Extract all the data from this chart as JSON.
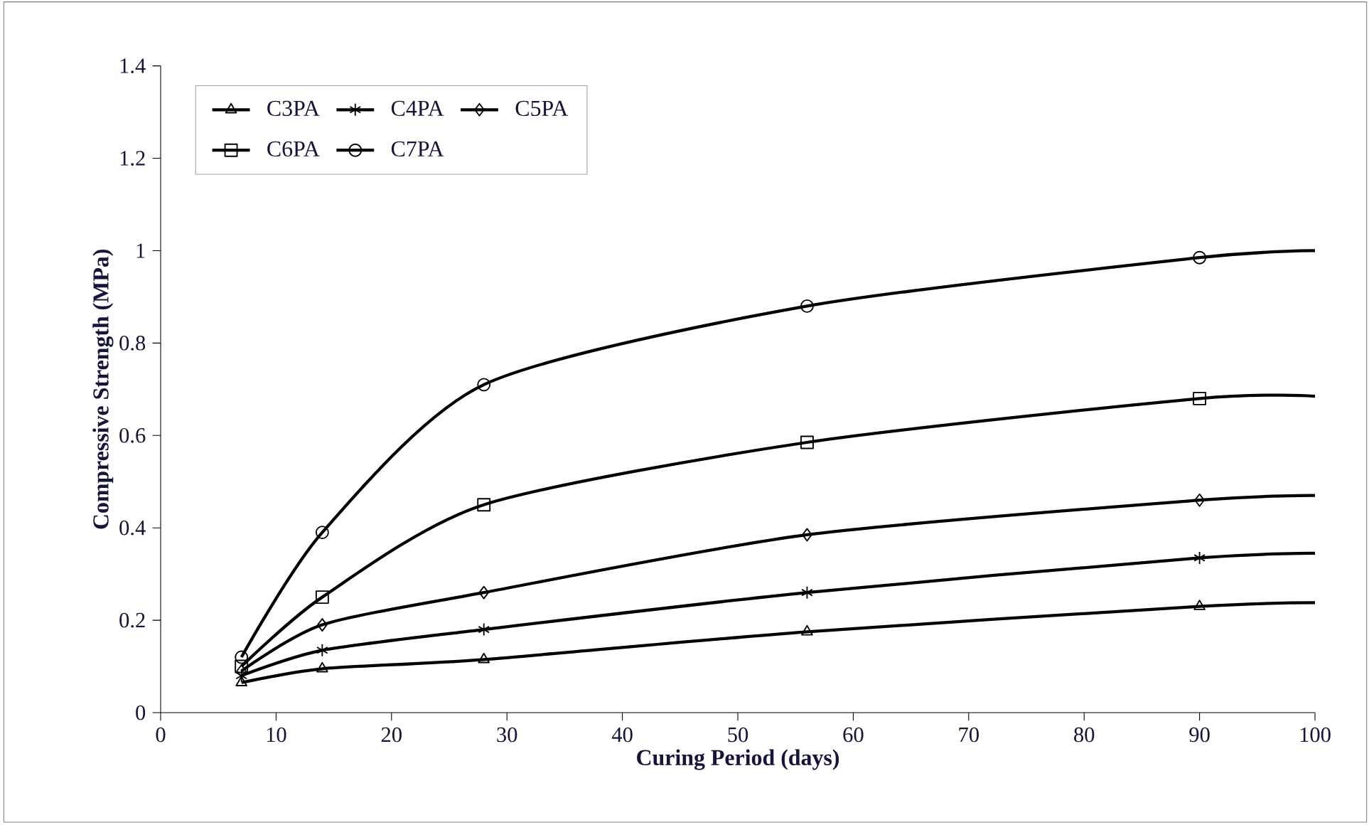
{
  "chart_data": {
    "type": "line",
    "xlabel": "Curing Period (days)",
    "ylabel": "Compressive Strength (MPa)",
    "xlim": [
      0,
      100
    ],
    "xticks": [
      0,
      10,
      20,
      30,
      40,
      50,
      60,
      70,
      80,
      90,
      100
    ],
    "ylim": [
      0,
      1.4
    ],
    "yticks": [
      0,
      0.2,
      0.4,
      0.6,
      0.8,
      1,
      1.2,
      1.4
    ],
    "grid": false,
    "legend": "top left",
    "line_style": "solid",
    "series": [
      {
        "name": "C3PA",
        "color": "#000000",
        "marker": "triangle",
        "x": [
          7,
          14,
          28,
          56,
          90,
          100
        ],
        "values": [
          0.065,
          0.095,
          0.115,
          0.175,
          0.23,
          0.238
        ]
      },
      {
        "name": "C4PA",
        "color": "#000000",
        "marker": "cross",
        "x": [
          7,
          14,
          28,
          56,
          90,
          100
        ],
        "values": [
          0.08,
          0.135,
          0.18,
          0.26,
          0.335,
          0.345
        ]
      },
      {
        "name": "C5PA",
        "color": "#000000",
        "marker": "diamond",
        "x": [
          7,
          14,
          28,
          56,
          90,
          100
        ],
        "values": [
          0.09,
          0.19,
          0.26,
          0.385,
          0.46,
          0.47
        ]
      },
      {
        "name": "C6PA",
        "color": "#000000",
        "marker": "square",
        "x": [
          7,
          14,
          28,
          56,
          90,
          100
        ],
        "values": [
          0.1,
          0.25,
          0.45,
          0.585,
          0.68,
          0.685
        ]
      },
      {
        "name": "C7PA",
        "color": "#000000",
        "marker": "circle",
        "x": [
          7,
          14,
          28,
          56,
          90,
          100
        ],
        "values": [
          0.12,
          0.39,
          0.71,
          0.88,
          0.985,
          1.0
        ]
      }
    ]
  }
}
